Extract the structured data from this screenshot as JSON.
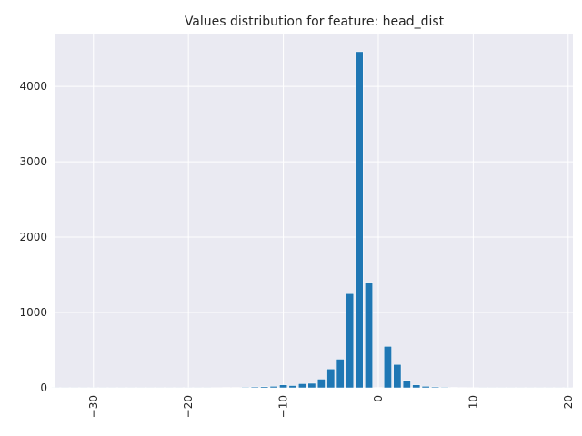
{
  "chart_data": {
    "type": "bar",
    "title": "Values distribution for feature: head_dist",
    "xlabel": "",
    "ylabel": "",
    "xlim": [
      -34,
      20.5
    ],
    "ylim": [
      0,
      4700
    ],
    "grid": true,
    "x_ticks": [
      -30,
      -20,
      -10,
      0,
      10,
      20
    ],
    "x_tick_labels": [
      "−30",
      "−20",
      "−10",
      "0",
      "10",
      "20"
    ],
    "y_ticks": [
      0,
      1000,
      2000,
      3000,
      4000
    ],
    "y_tick_labels": [
      "0",
      "1000",
      "2000",
      "3000",
      "4000"
    ],
    "bar_width": 0.8,
    "bar_color": "#1f77b4",
    "background_color": "#eaeaf2",
    "x": [
      -34,
      -33,
      -32,
      -31,
      -30,
      -29,
      -28,
      -27,
      -26,
      -25,
      -24,
      -23,
      -22,
      -21,
      -20,
      -19,
      -18,
      -17,
      -16,
      -15,
      -14,
      -13,
      -12,
      -11,
      -10,
      -9,
      -8,
      -7,
      -6,
      -5,
      -4,
      -3,
      -2,
      -1,
      0,
      1,
      2,
      3,
      4,
      5,
      6,
      7,
      8,
      9,
      10,
      11,
      12,
      13,
      14,
      15,
      16,
      17,
      18,
      19,
      20
    ],
    "values": [
      1,
      1,
      1,
      1,
      2,
      1,
      1,
      1,
      1,
      1,
      1,
      1,
      1,
      1,
      2,
      2,
      2,
      3,
      5,
      5,
      8,
      12,
      15,
      20,
      40,
      30,
      55,
      60,
      115,
      250,
      380,
      1250,
      4460,
      1390,
      5,
      550,
      310,
      100,
      40,
      20,
      12,
      8,
      6,
      4,
      3,
      2,
      2,
      1,
      1,
      1,
      1,
      1,
      1,
      1,
      1
    ]
  }
}
